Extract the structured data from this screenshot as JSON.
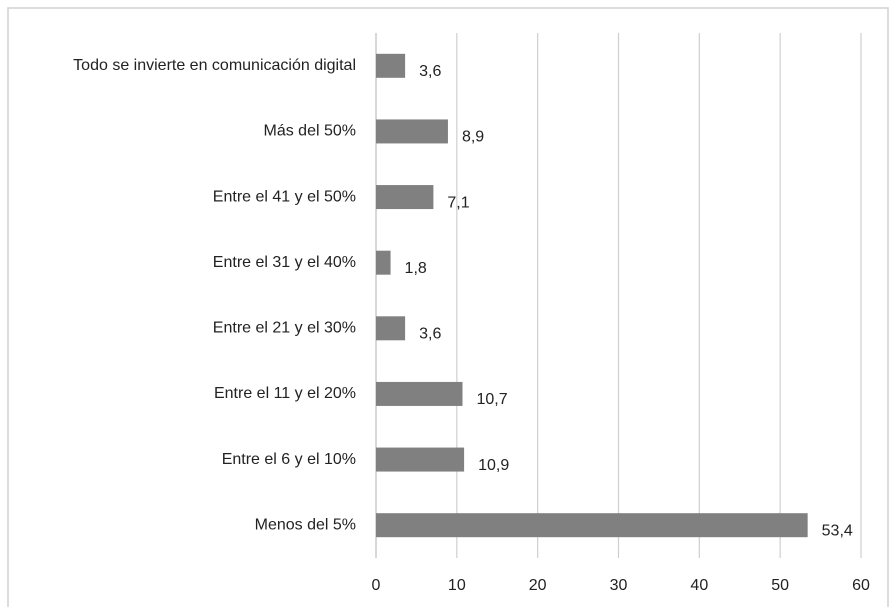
{
  "chart_data": {
    "type": "bar",
    "orientation": "horizontal",
    "categories": [
      "Todo se invierte en comunicación digital",
      "Más del 50%",
      "Entre el 41 y el 50%",
      "Entre el 31 y el 40%",
      "Entre el 21 y el 30%",
      "Entre el 11 y el 20%",
      "Entre el 6 y el 10%",
      "Menos del 5%"
    ],
    "values": [
      3.6,
      8.9,
      7.1,
      1.8,
      3.6,
      10.7,
      10.9,
      53.4
    ],
    "value_labels": [
      "3,6",
      "8,9",
      "7,1",
      "1,8",
      "3,6",
      "10,7",
      "10,9",
      "53,4"
    ],
    "color": "#808080",
    "xlim": [
      0,
      60
    ],
    "xticks": [
      0,
      10,
      20,
      30,
      40,
      50,
      60
    ],
    "grid": true
  }
}
